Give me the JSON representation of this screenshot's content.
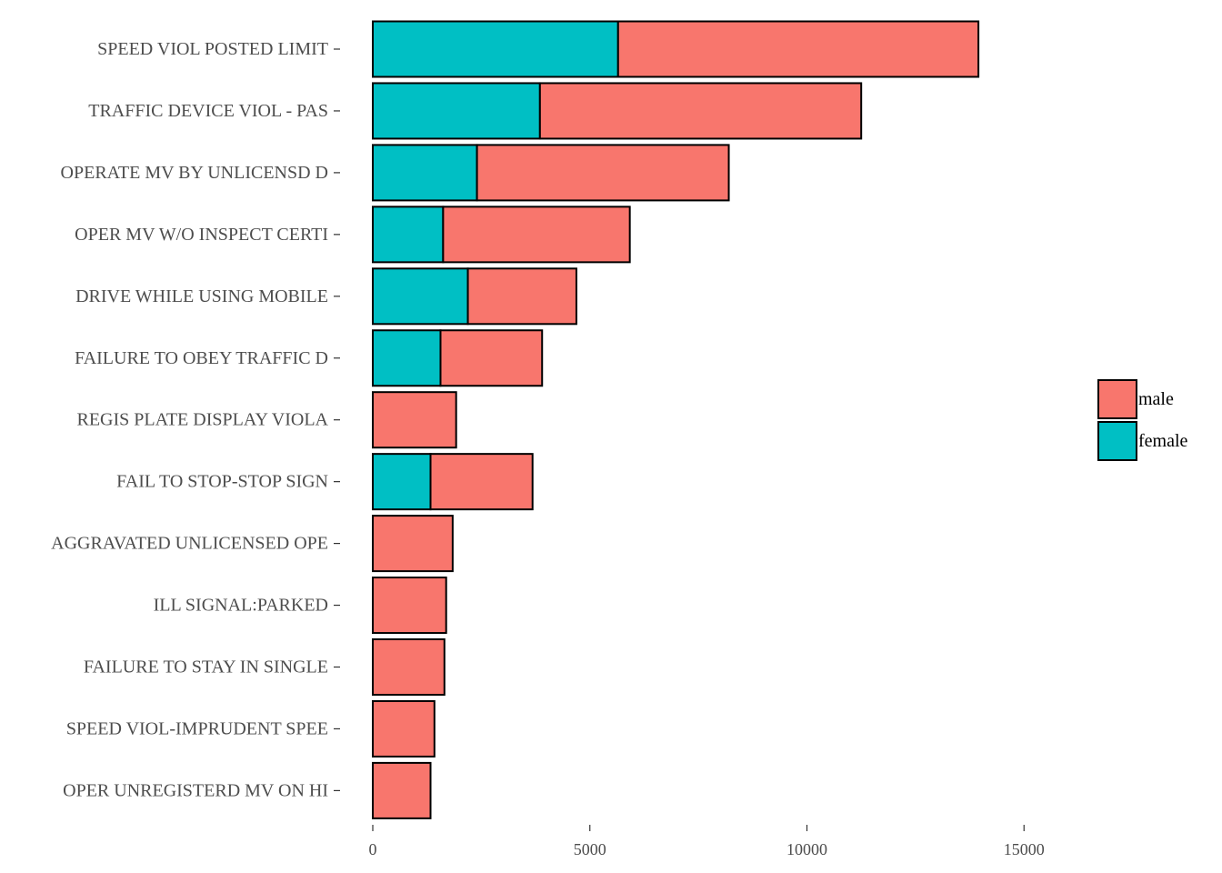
{
  "chart_data": {
    "type": "bar",
    "orientation": "horizontal",
    "stacked": true,
    "categories": [
      "SPEED VIOL  POSTED LIMIT",
      "TRAFFIC DEVICE VIOL - PAS",
      "OPERATE MV BY UNLICENSD D",
      "OPER MV W/O INSPECT CERTI",
      "DRIVE WHILE USING MOBILE",
      "FAILURE TO OBEY TRAFFIC D",
      "REGIS PLATE DISPLAY VIOLA",
      "FAIL TO STOP-STOP SIGN",
      "AGGRAVATED UNLICENSED OPE",
      "ILL SIGNAL:PARKED",
      "FAILURE TO STAY IN SINGLE",
      "SPEED VIOL-IMPRUDENT SPEE",
      "OPER UNREGISTERD MV ON HI"
    ],
    "series": [
      {
        "name": "female",
        "color": "#00BFC4",
        "values": [
          5650,
          3850,
          2400,
          1620,
          2190,
          1560,
          0,
          1330,
          0,
          0,
          0,
          0,
          0
        ]
      },
      {
        "name": "male",
        "color": "#F8766D",
        "values": [
          8300,
          7400,
          5800,
          4300,
          2500,
          2340,
          1920,
          2350,
          1840,
          1690,
          1650,
          1420,
          1330
        ]
      }
    ],
    "legend_order": [
      "male",
      "female"
    ],
    "xlim": [
      0,
      18200
    ],
    "xticks": [
      0,
      5000,
      10000,
      15000
    ],
    "xtick_labels": [
      "0",
      "5000",
      "10000",
      "15000"
    ],
    "legend_position": "right",
    "grid": false
  }
}
